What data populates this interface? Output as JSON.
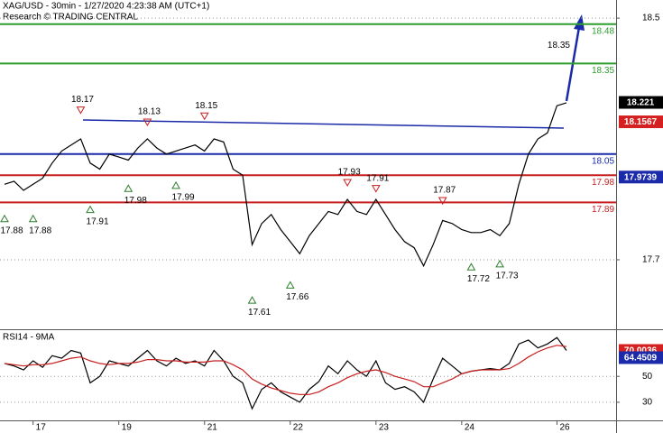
{
  "chart_data": [
    {
      "type": "line",
      "title": "XAG/USD - 30min - 1/27/2020 4:23:38 AM (UTC+1)",
      "subtitle": "Research © TRADING CENTRAL",
      "ylim": [
        17.47,
        18.56
      ],
      "yticks": [
        17.7,
        18.5
      ],
      "series": [
        {
          "color": "#000000",
          "values": [
            17.95,
            17.96,
            17.93,
            17.95,
            17.97,
            18.02,
            18.06,
            18.08,
            18.1,
            18.02,
            18.0,
            18.05,
            18.04,
            18.03,
            18.07,
            18.1,
            18.07,
            18.05,
            18.06,
            18.07,
            18.08,
            18.06,
            18.1,
            18.09,
            18.0,
            17.98,
            17.75,
            17.82,
            17.85,
            17.8,
            17.76,
            17.72,
            17.78,
            17.82,
            17.86,
            17.85,
            17.9,
            17.86,
            17.85,
            17.9,
            17.85,
            17.8,
            17.76,
            17.74,
            17.68,
            17.75,
            17.83,
            17.82,
            17.8,
            17.79,
            17.79,
            17.8,
            17.78,
            17.82,
            17.95,
            18.05,
            18.1,
            18.12,
            18.21,
            18.22
          ]
        }
      ],
      "levels": [
        {
          "value": 18.48,
          "color": "#2e9e2e"
        },
        {
          "value": 18.35,
          "color": "#2e9e2e"
        },
        {
          "value": 18.05,
          "color": "#1a2aa8"
        },
        {
          "value": 17.98,
          "color": "#c81e1e"
        },
        {
          "value": 17.89,
          "color": "#c81e1e"
        }
      ],
      "price_labels": [
        {
          "value": 18.221,
          "color": "#000000"
        },
        {
          "value": 18.1567,
          "color": "#d42020"
        },
        {
          "value": 17.9739,
          "color": "#1a2aa8"
        }
      ],
      "annotations": [
        {
          "x": 8,
          "value": 18.17,
          "dir": "down",
          "marker": true
        },
        {
          "x": 15,
          "value": 18.13,
          "dir": "down",
          "marker": true
        },
        {
          "x": 21,
          "value": 18.15,
          "dir": "down",
          "marker": true
        },
        {
          "x": 36,
          "value": 17.93,
          "dir": "down",
          "marker": true
        },
        {
          "x": 39,
          "value": 17.91,
          "dir": "down",
          "marker": true
        },
        {
          "x": 46,
          "value": 17.87,
          "dir": "down",
          "marker": true
        },
        {
          "x": 58,
          "value": 18.35,
          "dir": "down",
          "marker": false
        },
        {
          "x": 0,
          "value": 17.88,
          "dir": "up",
          "marker": true
        },
        {
          "x": 3,
          "value": 17.88,
          "dir": "up",
          "marker": true
        },
        {
          "x": 9,
          "value": 17.91,
          "dir": "up",
          "marker": true
        },
        {
          "x": 13,
          "value": 17.98,
          "dir": "up",
          "marker": true
        },
        {
          "x": 18,
          "value": 17.99,
          "dir": "up",
          "marker": true
        },
        {
          "x": 26,
          "value": 17.61,
          "dir": "up",
          "marker": true
        },
        {
          "x": 30,
          "value": 17.66,
          "dir": "up",
          "marker": true
        },
        {
          "x": 49,
          "value": 17.72,
          "dir": "up",
          "marker": true
        },
        {
          "x": 52,
          "value": 17.73,
          "dir": "up",
          "marker": true
        }
      ]
    },
    {
      "type": "line",
      "title": "RSI14 - 9MA",
      "categories": [
        null,
        null,
        null,
        "17",
        null,
        null,
        null,
        null,
        null,
        null,
        null,
        null,
        "19",
        null,
        null,
        null,
        null,
        null,
        null,
        null,
        null,
        "21",
        null,
        null,
        null,
        null,
        null,
        null,
        null,
        null,
        "22",
        null,
        null,
        null,
        null,
        null,
        null,
        null,
        null,
        "23",
        null,
        null,
        null,
        null,
        null,
        null,
        null,
        null,
        "24",
        null,
        null,
        null,
        null,
        null,
        null,
        null,
        null,
        null,
        "26",
        null
      ],
      "ylim": [
        16,
        85
      ],
      "yticks": [
        30,
        50
      ],
      "series": [
        {
          "color": "#000000",
          "values": [
            60,
            58,
            55,
            62,
            57,
            66,
            64,
            70,
            68,
            45,
            50,
            62,
            60,
            58,
            64,
            70,
            62,
            58,
            64,
            60,
            62,
            58,
            70,
            62,
            50,
            45,
            25,
            40,
            45,
            38,
            34,
            30,
            40,
            46,
            58,
            52,
            62,
            55,
            50,
            62,
            45,
            40,
            42,
            38,
            30,
            48,
            64,
            58,
            52,
            54,
            55,
            56,
            55,
            60,
            75,
            78,
            72,
            75,
            80,
            70
          ]
        },
        {
          "color": "#c81e1e",
          "values": [
            60,
            59,
            58,
            59,
            59,
            60,
            62,
            64,
            65,
            62,
            60,
            59,
            60,
            60,
            61,
            63,
            63,
            62,
            62,
            61,
            61,
            61,
            62,
            62,
            59,
            55,
            48,
            44,
            41,
            39,
            37,
            36,
            36,
            38,
            42,
            45,
            49,
            52,
            54,
            55,
            53,
            50,
            48,
            46,
            42,
            42,
            45,
            48,
            52,
            54,
            55,
            55,
            55,
            56,
            60,
            65,
            69,
            72,
            74,
            73
          ]
        }
      ],
      "price_labels": [
        {
          "value": 70.0036,
          "color": "#d42020"
        },
        {
          "value": 64.4509,
          "color": "#1a2aa8"
        }
      ]
    }
  ]
}
